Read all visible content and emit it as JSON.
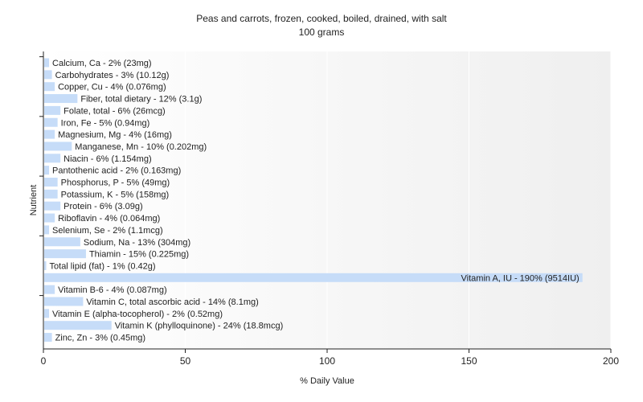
{
  "chart_data": {
    "type": "bar",
    "orientation": "horizontal",
    "title": "Peas and carrots, frozen, cooked, boiled, drained, with salt",
    "subtitle": "100 grams",
    "xlabel": "% Daily Value",
    "ylabel": "Nutrient",
    "xlim": [
      0,
      200
    ],
    "xticks": [
      0,
      50,
      100,
      150,
      200
    ],
    "grid": true,
    "bar_color": "#c6dcf8",
    "categories": [
      "Calcium, Ca",
      "Carbohydrates",
      "Copper, Cu",
      "Fiber, total dietary",
      "Folate, total",
      "Iron, Fe",
      "Magnesium, Mg",
      "Manganese, Mn",
      "Niacin",
      "Pantothenic acid",
      "Phosphorus, P",
      "Potassium, K",
      "Protein",
      "Riboflavin",
      "Selenium, Se",
      "Sodium, Na",
      "Thiamin",
      "Total lipid (fat)",
      "Vitamin A, IU",
      "Vitamin B-6",
      "Vitamin C, total ascorbic acid",
      "Vitamin E (alpha-tocopherol)",
      "Vitamin K (phylloquinone)",
      "Zinc, Zn"
    ],
    "values": [
      2,
      3,
      4,
      12,
      6,
      5,
      4,
      10,
      6,
      2,
      5,
      5,
      6,
      4,
      2,
      13,
      15,
      1,
      190,
      4,
      14,
      2,
      24,
      3
    ],
    "labels": [
      "Calcium, Ca - 2% (23mg)",
      "Carbohydrates - 3% (10.12g)",
      "Copper, Cu - 4% (0.076mg)",
      "Fiber, total dietary - 12% (3.1g)",
      "Folate, total - 6% (26mcg)",
      "Iron, Fe - 5% (0.94mg)",
      "Magnesium, Mg - 4% (16mg)",
      "Manganese, Mn - 10% (0.202mg)",
      "Niacin - 6% (1.154mg)",
      "Pantothenic acid - 2% (0.163mg)",
      "Phosphorus, P - 5% (49mg)",
      "Potassium, K - 5% (158mg)",
      "Protein - 6% (3.09g)",
      "Riboflavin - 4% (0.064mg)",
      "Selenium, Se - 2% (1.1mcg)",
      "Sodium, Na - 13% (304mg)",
      "Thiamin - 15% (0.225mg)",
      "Total lipid (fat) - 1% (0.42g)",
      "Vitamin A, IU - 190% (9514IU)",
      "Vitamin B-6 - 4% (0.087mg)",
      "Vitamin C, total ascorbic acid - 14% (8.1mg)",
      "Vitamin E (alpha-tocopherol) - 2% (0.52mg)",
      "Vitamin K (phylloquinone) - 24% (18.8mcg)",
      "Zinc, Zn - 3% (0.45mg)"
    ]
  }
}
